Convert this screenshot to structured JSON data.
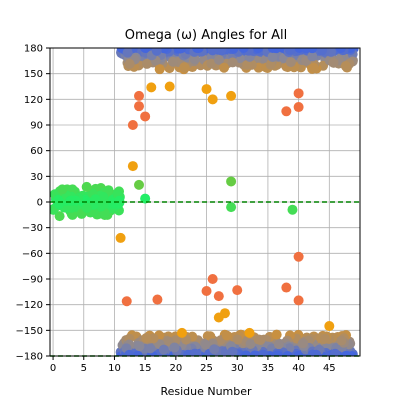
{
  "chart_data": {
    "type": "scatter",
    "title": "Omega (ω) Angles for All",
    "xlabel": "Residue Number",
    "ylabel": "",
    "xlim": [
      -0.5,
      50
    ],
    "ylim": [
      -180,
      180
    ],
    "xticks": [
      0,
      5,
      10,
      15,
      20,
      25,
      30,
      35,
      40,
      45
    ],
    "yticks": [
      -180,
      -150,
      -120,
      -90,
      -60,
      -30,
      0,
      30,
      60,
      90,
      120,
      150,
      180
    ],
    "grid": true,
    "reference_lines": [
      {
        "y": 0,
        "style": "dashed",
        "color": "#008000"
      },
      {
        "y": -180,
        "style": "dashed",
        "color": "#008000"
      }
    ],
    "colors": {
      "cis_cluster": "#22ee66",
      "trans_cluster_core": "#4466dd",
      "trans_cluster_edge": "#888899",
      "outliers": "#f0a010"
    },
    "clusters": [
      {
        "name": "cis",
        "x_range": [
          0,
          11
        ],
        "y_center": 0,
        "y_spread": 22
      },
      {
        "name": "trans_upper",
        "x_range": [
          11,
          49
        ],
        "y_center": 172,
        "y_spread": 25
      },
      {
        "name": "trans_lower",
        "x_range": [
          11,
          49
        ],
        "y_center": -172,
        "y_spread": 25
      }
    ],
    "points": [
      {
        "x": 13,
        "y": 90,
        "color": "#f07040"
      },
      {
        "x": 15,
        "y": 100,
        "color": "#f07040"
      },
      {
        "x": 14,
        "y": 20,
        "color": "#66cc44"
      },
      {
        "x": 13,
        "y": 42,
        "color": "#f0a010"
      },
      {
        "x": 15,
        "y": 4,
        "color": "#22ee66"
      },
      {
        "x": 11,
        "y": -42,
        "color": "#f0a010"
      },
      {
        "x": 29,
        "y": 24,
        "color": "#66cc44"
      },
      {
        "x": 29,
        "y": -6,
        "color": "#44dd55"
      },
      {
        "x": 39,
        "y": -9,
        "color": "#44dd55"
      },
      {
        "x": 40,
        "y": -64,
        "color": "#f07040"
      },
      {
        "x": 26,
        "y": -90,
        "color": "#f07040"
      },
      {
        "x": 30,
        "y": -103,
        "color": "#f07040"
      },
      {
        "x": 38,
        "y": -100,
        "color": "#f07040"
      },
      {
        "x": 38,
        "y": 106,
        "color": "#f07040"
      },
      {
        "x": 40,
        "y": 111,
        "color": "#f07040"
      },
      {
        "x": 40,
        "y": 127,
        "color": "#f07040"
      },
      {
        "x": 29,
        "y": 124,
        "color": "#f0a010"
      },
      {
        "x": 26,
        "y": 120,
        "color": "#f0a010"
      },
      {
        "x": 25,
        "y": 132,
        "color": "#f0a010"
      },
      {
        "x": 19,
        "y": 135,
        "color": "#f0a010"
      },
      {
        "x": 16,
        "y": 134,
        "color": "#f0a010"
      },
      {
        "x": 14,
        "y": 112,
        "color": "#f07040"
      },
      {
        "x": 14,
        "y": 124,
        "color": "#f07040"
      },
      {
        "x": 27,
        "y": -135,
        "color": "#f0a010"
      },
      {
        "x": 28,
        "y": -130,
        "color": "#f0a010"
      },
      {
        "x": 25,
        "y": -104,
        "color": "#f07040"
      },
      {
        "x": 27,
        "y": -110,
        "color": "#f07040"
      },
      {
        "x": 17,
        "y": -114,
        "color": "#f07040"
      },
      {
        "x": 12,
        "y": -116,
        "color": "#f07040"
      },
      {
        "x": 40,
        "y": -115,
        "color": "#f07040"
      },
      {
        "x": 45,
        "y": -145,
        "color": "#f0a010"
      },
      {
        "x": 21,
        "y": -153,
        "color": "#f0a010"
      },
      {
        "x": 32,
        "y": -153,
        "color": "#f0a010"
      }
    ]
  }
}
